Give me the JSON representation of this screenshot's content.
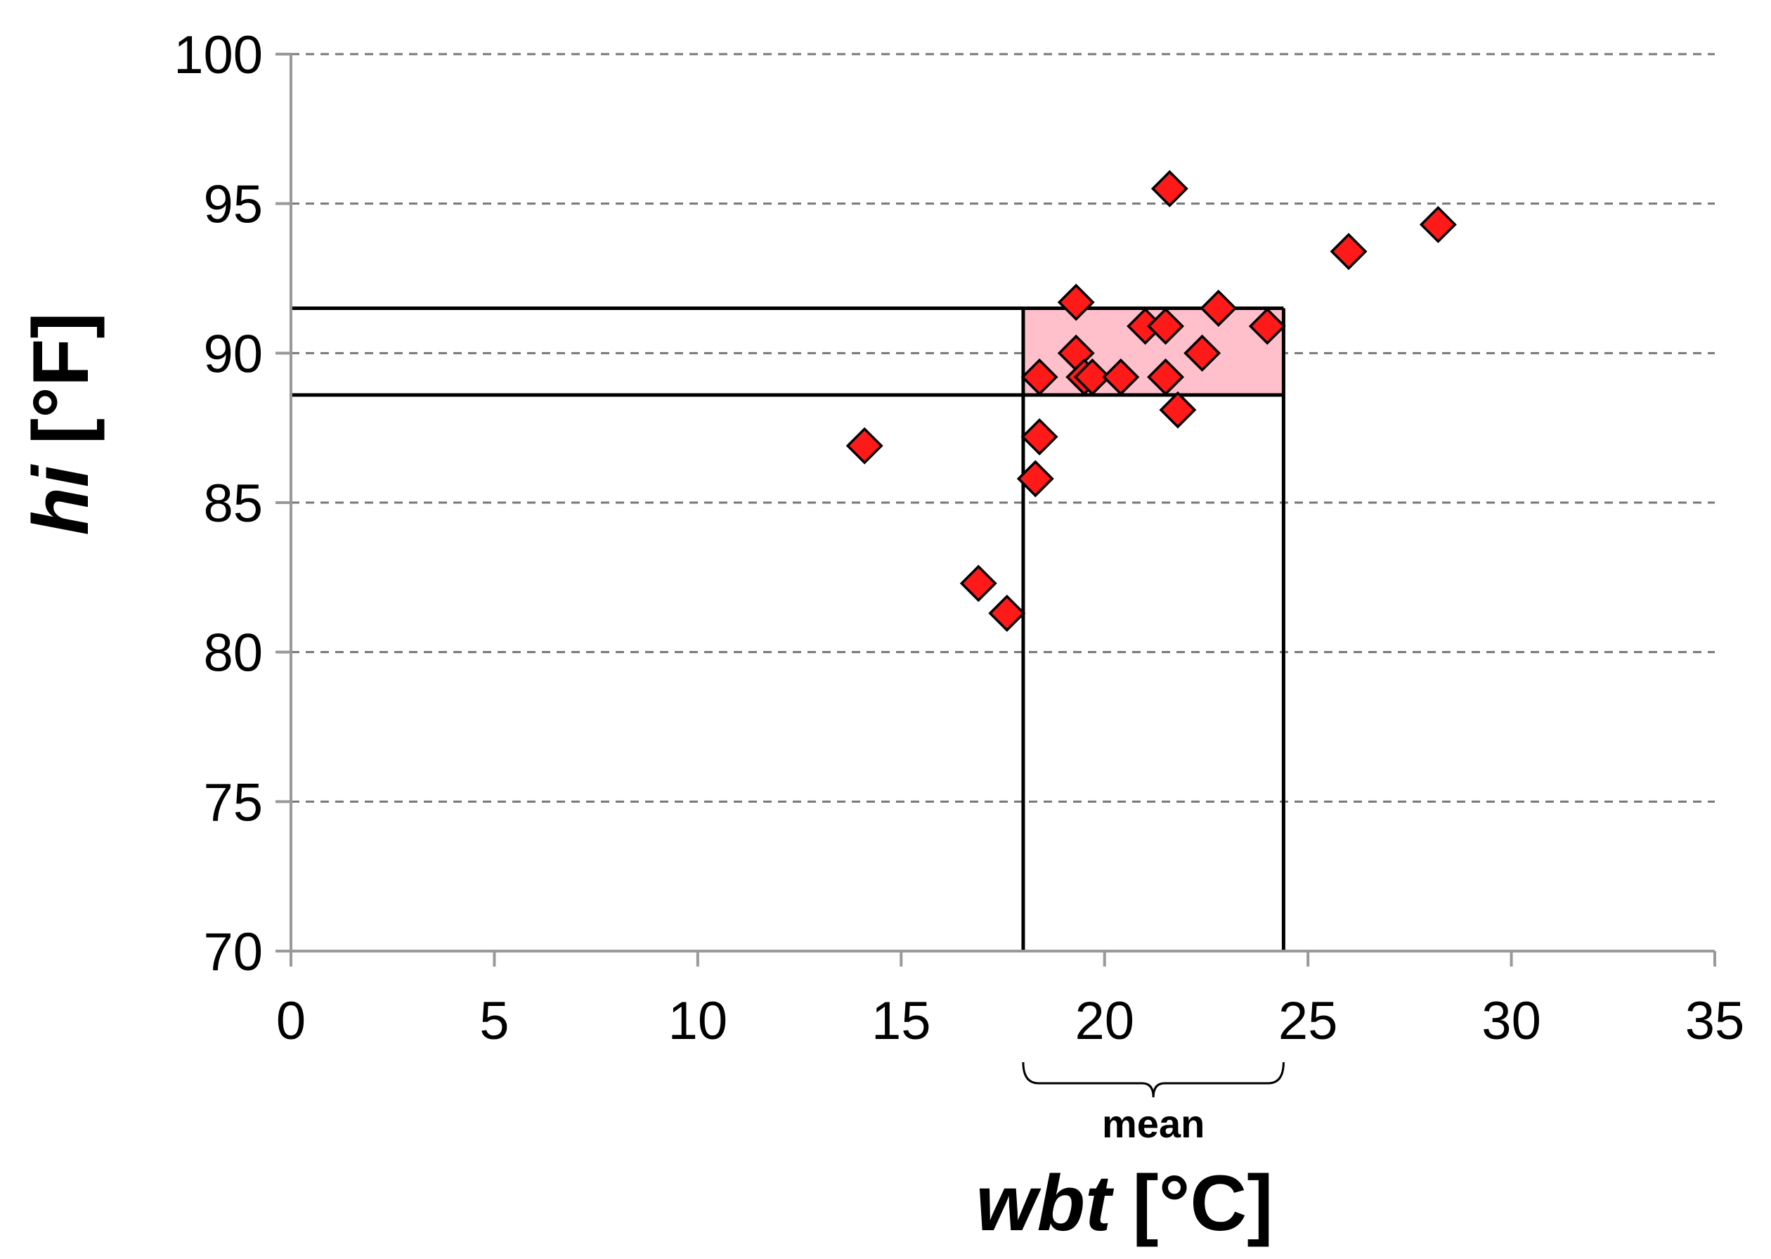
{
  "chart_data": {
    "type": "scatter",
    "title": "",
    "xlabel": {
      "var": "wbt",
      "unit": "[°C]"
    },
    "ylabel": {
      "var": "hi",
      "unit": "[°F]"
    },
    "xlim": [
      0,
      35
    ],
    "ylim": [
      70,
      100
    ],
    "x_ticks": [
      "0",
      "5",
      "10",
      "15",
      "20",
      "25",
      "30",
      "35"
    ],
    "y_ticks": [
      "70",
      "75",
      "80",
      "85",
      "90",
      "95",
      "100"
    ],
    "grid": {
      "y": "dashed",
      "x": false
    },
    "colors": {
      "marker": "#ff1a1a",
      "marker_edge": "#000000",
      "box_fill": "#ffc0cb",
      "grid": "#777777",
      "axis": "#999999"
    },
    "marker": "diamond",
    "points": [
      {
        "x": 14.1,
        "y": 86.9
      },
      {
        "x": 16.9,
        "y": 82.3
      },
      {
        "x": 17.6,
        "y": 81.3
      },
      {
        "x": 18.3,
        "y": 85.8
      },
      {
        "x": 18.4,
        "y": 87.2
      },
      {
        "x": 18.4,
        "y": 89.2
      },
      {
        "x": 19.3,
        "y": 91.7
      },
      {
        "x": 19.3,
        "y": 90.0
      },
      {
        "x": 19.5,
        "y": 89.2
      },
      {
        "x": 19.7,
        "y": 89.2
      },
      {
        "x": 20.4,
        "y": 89.2
      },
      {
        "x": 21.0,
        "y": 90.9
      },
      {
        "x": 21.5,
        "y": 90.9
      },
      {
        "x": 21.5,
        "y": 89.2
      },
      {
        "x": 21.6,
        "y": 95.5
      },
      {
        "x": 21.8,
        "y": 88.1
      },
      {
        "x": 22.4,
        "y": 90.0
      },
      {
        "x": 22.8,
        "y": 91.5
      },
      {
        "x": 24.0,
        "y": 90.9
      },
      {
        "x": 26.0,
        "y": 93.4
      },
      {
        "x": 28.2,
        "y": 94.3
      }
    ],
    "range_box": {
      "x": [
        18.0,
        24.4
      ],
      "y": [
        88.6,
        91.5
      ]
    },
    "bracket": {
      "x": [
        18.0,
        24.4
      ],
      "label": "mean"
    }
  }
}
